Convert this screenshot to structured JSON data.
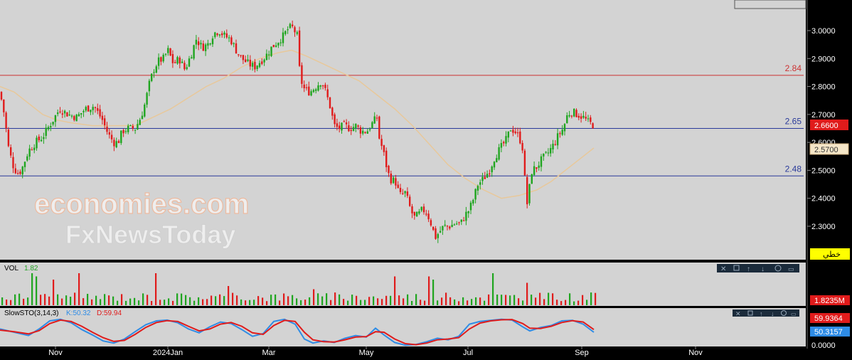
{
  "chart_data": [
    {
      "type": "candlestick",
      "panel": "price",
      "x_ticks": [
        "Nov",
        "2024Jan",
        "Mar",
        "May",
        "Jul",
        "Sep",
        "Nov"
      ],
      "y_ticks": [
        "3.0000",
        "2.9000",
        "2.8000",
        "2.7000",
        "2.6000",
        "2.5000",
        "2.4000",
        "2.3000"
      ],
      "ylim": [
        2.19,
        3.1
      ],
      "levels": [
        {
          "label": "2.84",
          "value": 2.84,
          "color": "#cc3333"
        },
        {
          "label": "2.65",
          "value": 2.65,
          "color": "#2a3a9a"
        },
        {
          "label": "2.48",
          "value": 2.48,
          "color": "#2a3a9a"
        }
      ],
      "last_price": {
        "label": "2.6600",
        "value": 2.66,
        "color": "#e01b1b"
      },
      "moving_average": {
        "label": "2.5700",
        "value": 2.57,
        "color": "#e8c89a"
      },
      "tool_button": "خطي",
      "watermark": {
        "line1": "economies.com",
        "line2": "FxNewsToday"
      },
      "close_path": [
        [
          0,
          2.78
        ],
        [
          6,
          2.7
        ],
        [
          12,
          2.58
        ],
        [
          18,
          2.52
        ],
        [
          24,
          2.49
        ],
        [
          30,
          2.5
        ],
        [
          40,
          2.57
        ],
        [
          50,
          2.6
        ],
        [
          60,
          2.62
        ],
        [
          72,
          2.67
        ],
        [
          84,
          2.72
        ],
        [
          96,
          2.7
        ],
        [
          108,
          2.69
        ],
        [
          120,
          2.72
        ],
        [
          132,
          2.73
        ],
        [
          144,
          2.68
        ],
        [
          152,
          2.63
        ],
        [
          160,
          2.6
        ],
        [
          166,
          2.6
        ],
        [
          172,
          2.64
        ],
        [
          180,
          2.65
        ],
        [
          190,
          2.65
        ],
        [
          198,
          2.69
        ],
        [
          204,
          2.74
        ],
        [
          210,
          2.81
        ],
        [
          216,
          2.86
        ],
        [
          222,
          2.89
        ],
        [
          230,
          2.9
        ],
        [
          236,
          2.93
        ],
        [
          244,
          2.88
        ],
        [
          252,
          2.9
        ],
        [
          260,
          2.86
        ],
        [
          268,
          2.91
        ],
        [
          276,
          2.97
        ],
        [
          284,
          2.94
        ],
        [
          292,
          2.95
        ],
        [
          300,
          2.99
        ],
        [
          308,
          3.0
        ],
        [
          316,
          2.98
        ],
        [
          324,
          2.97
        ],
        [
          332,
          2.93
        ],
        [
          340,
          2.9
        ],
        [
          350,
          2.88
        ],
        [
          358,
          2.87
        ],
        [
          366,
          2.89
        ],
        [
          374,
          2.91
        ],
        [
          382,
          2.94
        ],
        [
          390,
          2.96
        ],
        [
          398,
          2.98
        ],
        [
          406,
          3.01
        ],
        [
          412,
          3.01
        ],
        [
          418,
          2.98
        ],
        [
          422,
          2.83
        ],
        [
          428,
          2.79
        ],
        [
          436,
          2.78
        ],
        [
          444,
          2.8
        ],
        [
          452,
          2.82
        ],
        [
          458,
          2.78
        ],
        [
          464,
          2.73
        ],
        [
          470,
          2.66
        ],
        [
          476,
          2.65
        ],
        [
          484,
          2.66
        ],
        [
          492,
          2.65
        ],
        [
          500,
          2.66
        ],
        [
          508,
          2.64
        ],
        [
          516,
          2.64
        ],
        [
          524,
          2.67
        ],
        [
          530,
          2.69
        ],
        [
          534,
          2.6
        ],
        [
          538,
          2.58
        ],
        [
          542,
          2.53
        ],
        [
          548,
          2.47
        ],
        [
          556,
          2.46
        ],
        [
          562,
          2.41
        ],
        [
          570,
          2.42
        ],
        [
          576,
          2.37
        ],
        [
          582,
          2.33
        ],
        [
          588,
          2.34
        ],
        [
          594,
          2.36
        ],
        [
          600,
          2.35
        ],
        [
          606,
          2.31
        ],
        [
          612,
          2.26
        ],
        [
          618,
          2.28
        ],
        [
          624,
          2.3
        ],
        [
          632,
          2.3
        ],
        [
          640,
          2.31
        ],
        [
          648,
          2.31
        ],
        [
          654,
          2.34
        ],
        [
          660,
          2.36
        ],
        [
          666,
          2.4
        ],
        [
          672,
          2.45
        ],
        [
          680,
          2.47
        ],
        [
          688,
          2.5
        ],
        [
          696,
          2.55
        ],
        [
          704,
          2.58
        ],
        [
          712,
          2.61
        ],
        [
          718,
          2.65
        ],
        [
          724,
          2.64
        ],
        [
          730,
          2.62
        ],
        [
          736,
          2.57
        ],
        [
          740,
          2.36
        ],
        [
          744,
          2.43
        ],
        [
          748,
          2.5
        ],
        [
          754,
          2.51
        ],
        [
          762,
          2.54
        ],
        [
          770,
          2.56
        ],
        [
          778,
          2.59
        ],
        [
          786,
          2.63
        ],
        [
          792,
          2.65
        ],
        [
          798,
          2.7
        ],
        [
          804,
          2.71
        ],
        [
          812,
          2.7
        ],
        [
          820,
          2.69
        ],
        [
          828,
          2.67
        ],
        [
          836,
          2.66
        ]
      ],
      "ma_path": [
        [
          0,
          2.8
        ],
        [
          20,
          2.78
        ],
        [
          40,
          2.74
        ],
        [
          60,
          2.7
        ],
        [
          80,
          2.68
        ],
        [
          100,
          2.67
        ],
        [
          130,
          2.66
        ],
        [
          160,
          2.66
        ],
        [
          190,
          2.66
        ],
        [
          215,
          2.69
        ],
        [
          240,
          2.72
        ],
        [
          265,
          2.76
        ],
        [
          290,
          2.8
        ],
        [
          315,
          2.83
        ],
        [
          340,
          2.87
        ],
        [
          365,
          2.9
        ],
        [
          390,
          2.92
        ],
        [
          410,
          2.93
        ],
        [
          430,
          2.91
        ],
        [
          455,
          2.88
        ],
        [
          480,
          2.85
        ],
        [
          505,
          2.82
        ],
        [
          530,
          2.77
        ],
        [
          555,
          2.72
        ],
        [
          580,
          2.66
        ],
        [
          605,
          2.59
        ],
        [
          630,
          2.52
        ],
        [
          655,
          2.47
        ],
        [
          680,
          2.43
        ],
        [
          705,
          2.4
        ],
        [
          730,
          2.41
        ],
        [
          755,
          2.43
        ],
        [
          775,
          2.46
        ],
        [
          795,
          2.5
        ],
        [
          815,
          2.54
        ],
        [
          835,
          2.58
        ]
      ]
    },
    {
      "type": "bar",
      "panel": "volume",
      "label": "VOL",
      "value_label": "1.82",
      "right_value": "1.8235M",
      "n_bars": 140,
      "spikes": [
        [
          42,
          1.0
        ],
        [
          52,
          0.9
        ],
        [
          72,
          0.8
        ],
        [
          108,
          1.0
        ],
        [
          125,
          0.5
        ],
        [
          173,
          0.7
        ],
        [
          218,
          1.0
        ],
        [
          318,
          0.6
        ],
        [
          438,
          0.5
        ],
        [
          555,
          0.9
        ],
        [
          604,
          0.9
        ],
        [
          608,
          0.8
        ],
        [
          692,
          1.0
        ],
        [
          740,
          0.7
        ]
      ]
    },
    {
      "type": "line",
      "panel": "oscillator",
      "label": "SlowSTO(3,14,3)",
      "k_label": "K:50.32",
      "d_label": "D:59.94",
      "k_value": "50.3157",
      "d_value": "59.9364",
      "bottom_tick": "0.0000",
      "k_color": "#2e8ce6",
      "d_color": "#e01b1b",
      "k_path": [
        [
          0,
          62
        ],
        [
          20,
          50
        ],
        [
          40,
          38
        ],
        [
          55,
          62
        ],
        [
          70,
          92
        ],
        [
          85,
          98
        ],
        [
          100,
          85
        ],
        [
          115,
          60
        ],
        [
          130,
          40
        ],
        [
          145,
          18
        ],
        [
          160,
          10
        ],
        [
          175,
          25
        ],
        [
          190,
          52
        ],
        [
          205,
          78
        ],
        [
          220,
          92
        ],
        [
          235,
          95
        ],
        [
          250,
          85
        ],
        [
          265,
          62
        ],
        [
          280,
          48
        ],
        [
          295,
          70
        ],
        [
          310,
          88
        ],
        [
          325,
          82
        ],
        [
          340,
          60
        ],
        [
          355,
          35
        ],
        [
          370,
          45
        ],
        [
          385,
          90
        ],
        [
          400,
          98
        ],
        [
          415,
          80
        ],
        [
          428,
          25
        ],
        [
          440,
          10
        ],
        [
          455,
          18
        ],
        [
          470,
          12
        ],
        [
          485,
          28
        ],
        [
          500,
          38
        ],
        [
          515,
          32
        ],
        [
          528,
          65
        ],
        [
          540,
          40
        ],
        [
          555,
          12
        ],
        [
          570,
          2
        ],
        [
          585,
          5
        ],
        [
          600,
          15
        ],
        [
          615,
          28
        ],
        [
          630,
          22
        ],
        [
          645,
          35
        ],
        [
          660,
          80
        ],
        [
          675,
          90
        ],
        [
          690,
          94
        ],
        [
          705,
          98
        ],
        [
          720,
          95
        ],
        [
          735,
          70
        ],
        [
          745,
          55
        ],
        [
          760,
          68
        ],
        [
          775,
          75
        ],
        [
          790,
          92
        ],
        [
          805,
          94
        ],
        [
          820,
          80
        ],
        [
          835,
          50
        ]
      ],
      "d_path": [
        [
          0,
          58
        ],
        [
          20,
          52
        ],
        [
          40,
          44
        ],
        [
          55,
          56
        ],
        [
          70,
          82
        ],
        [
          85,
          95
        ],
        [
          100,
          90
        ],
        [
          115,
          72
        ],
        [
          130,
          50
        ],
        [
          145,
          30
        ],
        [
          160,
          16
        ],
        [
          175,
          20
        ],
        [
          190,
          42
        ],
        [
          205,
          68
        ],
        [
          220,
          86
        ],
        [
          235,
          93
        ],
        [
          250,
          90
        ],
        [
          265,
          72
        ],
        [
          280,
          55
        ],
        [
          295,
          62
        ],
        [
          310,
          80
        ],
        [
          325,
          86
        ],
        [
          340,
          72
        ],
        [
          355,
          48
        ],
        [
          370,
          42
        ],
        [
          385,
          75
        ],
        [
          400,
          94
        ],
        [
          415,
          90
        ],
        [
          428,
          50
        ],
        [
          440,
          22
        ],
        [
          455,
          15
        ],
        [
          470,
          14
        ],
        [
          485,
          22
        ],
        [
          500,
          32
        ],
        [
          515,
          34
        ],
        [
          528,
          52
        ],
        [
          540,
          50
        ],
        [
          555,
          25
        ],
        [
          570,
          8
        ],
        [
          585,
          4
        ],
        [
          600,
          10
        ],
        [
          615,
          22
        ],
        [
          630,
          25
        ],
        [
          645,
          30
        ],
        [
          660,
          62
        ],
        [
          675,
          84
        ],
        [
          690,
          92
        ],
        [
          705,
          96
        ],
        [
          720,
          97
        ],
        [
          735,
          82
        ],
        [
          745,
          65
        ],
        [
          760,
          64
        ],
        [
          775,
          72
        ],
        [
          790,
          86
        ],
        [
          805,
          93
        ],
        [
          820,
          88
        ],
        [
          835,
          60
        ]
      ]
    }
  ]
}
